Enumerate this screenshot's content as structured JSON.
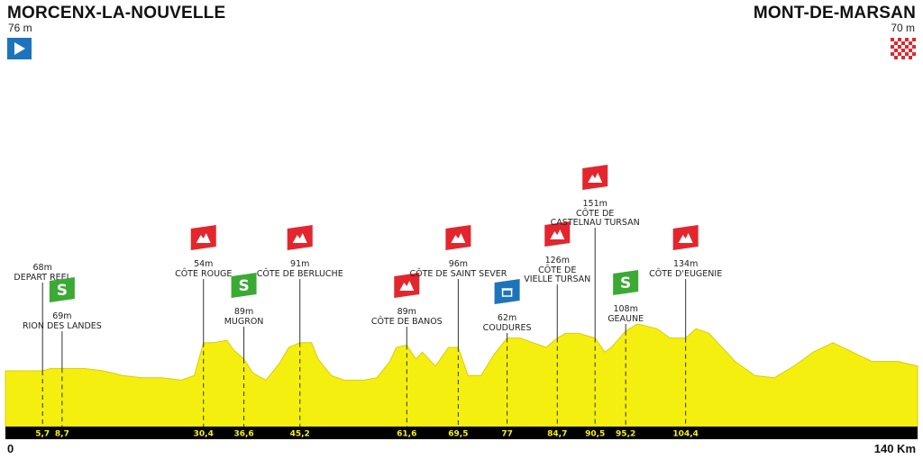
{
  "start": {
    "name": "MORCENX-LA-NOUVELLE",
    "altitude": "76 m",
    "km_label": "0"
  },
  "finish": {
    "name": "MONT-DE-MARSAN",
    "altitude": "70 m",
    "km_label": "140 Km"
  },
  "colors": {
    "profile": "#f5ef10",
    "profile_edge": "#d8cc10",
    "axis_bar": "#000000",
    "tick_text": "#f5ef10",
    "climb": "#e3262d",
    "sprint": "#3aaa35",
    "feed": "#1d74bb",
    "start_flag": "#1d74bb",
    "finish_flag": "#e3262d"
  },
  "chart_data": {
    "type": "area",
    "title": "",
    "xlabel": "",
    "ylabel": "",
    "xlim": [
      0,
      140
    ],
    "profile": {
      "x": [
        0,
        3,
        5.7,
        7,
        8.7,
        12,
        15,
        18,
        21,
        24,
        27,
        29,
        30.4,
        32,
        34,
        35,
        36.6,
        38,
        40,
        42,
        43.5,
        45.2,
        47,
        48,
        50,
        52,
        55,
        57,
        59,
        60,
        61.6,
        63,
        64,
        66,
        68,
        69.5,
        71,
        73,
        75,
        77,
        79,
        81,
        83,
        84.7,
        86,
        88,
        90.5,
        92,
        93,
        95.2,
        97,
        100,
        102,
        104.4,
        106,
        108,
        110,
        112,
        115,
        118,
        121,
        124,
        127,
        130,
        133,
        137,
        140
      ],
      "y": [
        68,
        68,
        68,
        69,
        69,
        69,
        68,
        66,
        65,
        65,
        64,
        66,
        80,
        80,
        81,
        77,
        73,
        67,
        64,
        71,
        78,
        80,
        80,
        73,
        66,
        64,
        64,
        65,
        72,
        78,
        79,
        73,
        76,
        70,
        78,
        78,
        66,
        66,
        75,
        82,
        82,
        80,
        78,
        82,
        84,
        84,
        82,
        76,
        78,
        85,
        88,
        86,
        82,
        82,
        86,
        84,
        78,
        72,
        66,
        65,
        70,
        76,
        80,
        76,
        72,
        72,
        70
      ]
    },
    "points": [
      {
        "km": 5.7,
        "km_label": "5,7",
        "altitude": "68m",
        "name": "DEPART REEL",
        "type": "start"
      },
      {
        "km": 8.7,
        "km_label": "8,7",
        "altitude": "69m",
        "name": "RION DES LANDES",
        "type": "sprint"
      },
      {
        "km": 30.4,
        "km_label": "30,4",
        "altitude": "54m",
        "name": "CÔTE ROUGE",
        "type": "climb"
      },
      {
        "km": 36.6,
        "km_label": "36,6",
        "altitude": "89m",
        "name": "MUGRON",
        "type": "sprint"
      },
      {
        "km": 45.2,
        "km_label": "45,2",
        "altitude": "91m",
        "name": "CÔTE DE BERLUCHE",
        "type": "climb"
      },
      {
        "km": 61.6,
        "km_label": "61,6",
        "altitude": "89m",
        "name": "CÔTE DE BANOS",
        "type": "climb"
      },
      {
        "km": 69.5,
        "km_label": "69,5",
        "altitude": "96m",
        "name": "CÔTE DE SAINT SEVER",
        "type": "climb"
      },
      {
        "km": 77,
        "km_label": "77",
        "altitude": "62m",
        "name": "COUDURES",
        "type": "feed"
      },
      {
        "km": 84.7,
        "km_label": "84,7",
        "altitude": "126m",
        "name": "CÔTE DE\nVIELLE TURSAN",
        "type": "climb"
      },
      {
        "km": 90.5,
        "km_label": "90,5",
        "altitude": "151m",
        "name": "CÔTE DE\nCASTELNAU TURSAN",
        "type": "climb"
      },
      {
        "km": 95.2,
        "km_label": "95,2",
        "altitude": "108m",
        "name": "GEAUNE",
        "type": "sprint"
      },
      {
        "km": 104.4,
        "km_label": "104,4",
        "altitude": "134m",
        "name": "CÔTE D'EUGENIE",
        "type": "climb"
      }
    ]
  }
}
